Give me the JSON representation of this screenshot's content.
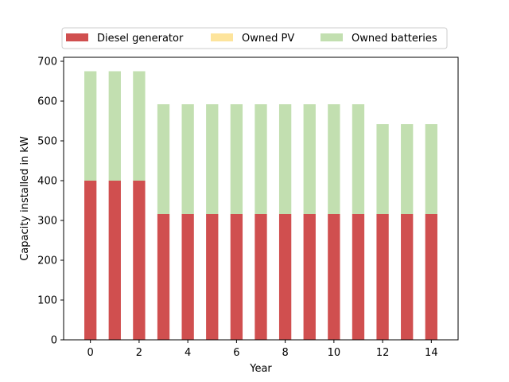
{
  "chart_data": {
    "type": "bar",
    "stacked": true,
    "title": "",
    "xlabel": "Year",
    "ylabel": "Capacity installed in kW",
    "x": [
      0,
      1,
      2,
      3,
      4,
      5,
      6,
      7,
      8,
      9,
      10,
      11,
      12,
      13,
      14
    ],
    "xticks": [
      0,
      2,
      4,
      6,
      8,
      10,
      12,
      14
    ],
    "yticks": [
      0,
      100,
      200,
      300,
      400,
      500,
      600,
      700
    ],
    "xlim": [
      -1.1,
      15.1
    ],
    "ylim": [
      0,
      710
    ],
    "grid": false,
    "legend_position": "top",
    "series": [
      {
        "name": "Diesel generator",
        "color": "#d04f4f",
        "values": [
          400,
          400,
          400,
          316,
          316,
          316,
          316,
          316,
          316,
          316,
          316,
          316,
          316,
          316,
          316
        ]
      },
      {
        "name": "Owned PV",
        "color": "#fde49c",
        "values": [
          0,
          0,
          0,
          0,
          0,
          0,
          0,
          0,
          0,
          0,
          0,
          0,
          0,
          0,
          0
        ]
      },
      {
        "name": "Owned batteries",
        "color": "#c2dfb0",
        "values": [
          275,
          275,
          275,
          276,
          276,
          276,
          276,
          276,
          276,
          276,
          276,
          276,
          226,
          226,
          226
        ]
      }
    ]
  }
}
